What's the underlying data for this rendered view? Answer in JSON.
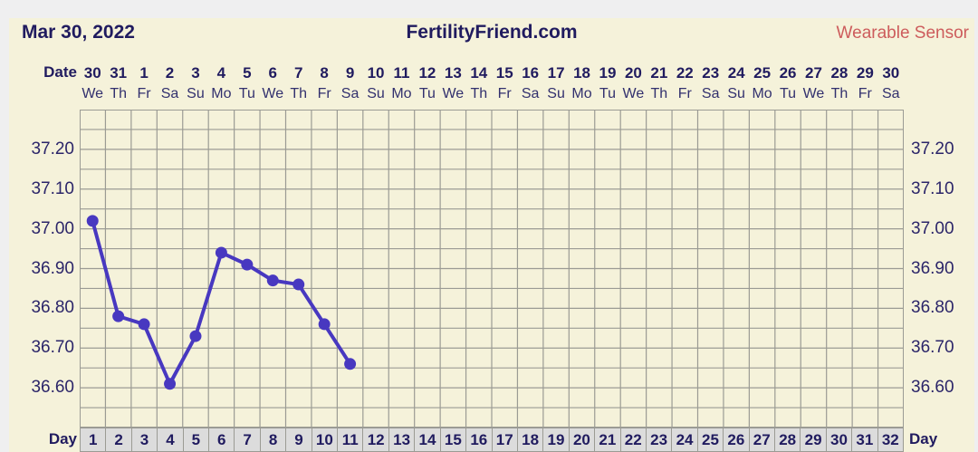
{
  "header": {
    "date_title": "Mar 30, 2022",
    "site_title": "FertilityFriend.com",
    "sensor_label": "Wearable Sensor"
  },
  "axes": {
    "date_row_label": "Date",
    "day_row_label": "Day",
    "dates": [
      "30",
      "31",
      "1",
      "2",
      "3",
      "4",
      "5",
      "6",
      "7",
      "8",
      "9",
      "10",
      "11",
      "12",
      "13",
      "14",
      "15",
      "16",
      "17",
      "18",
      "19",
      "20",
      "21",
      "22",
      "23",
      "24",
      "25",
      "26",
      "27",
      "28",
      "29",
      "30"
    ],
    "weekdays": [
      "We",
      "Th",
      "Fr",
      "Sa",
      "Su",
      "Mo",
      "Tu",
      "We",
      "Th",
      "Fr",
      "Sa",
      "Su",
      "Mo",
      "Tu",
      "We",
      "Th",
      "Fr",
      "Sa",
      "Su",
      "Mo",
      "Tu",
      "We",
      "Th",
      "Fr",
      "Sa",
      "Su",
      "Mo",
      "Tu",
      "We",
      "Th",
      "Fr",
      "Sa"
    ],
    "day_numbers": [
      "1",
      "2",
      "3",
      "4",
      "5",
      "6",
      "7",
      "8",
      "9",
      "10",
      "11",
      "12",
      "13",
      "14",
      "15",
      "16",
      "17",
      "18",
      "19",
      "20",
      "21",
      "22",
      "23",
      "24",
      "25",
      "26",
      "27",
      "28",
      "29",
      "30",
      "31",
      "32"
    ],
    "y_tick_labels": [
      "37.20",
      "37.10",
      "37.00",
      "36.90",
      "36.80",
      "36.70",
      "36.60"
    ]
  },
  "chart_data": {
    "type": "line",
    "title": "FertilityFriend.com",
    "x_label": "Day",
    "x": [
      1,
      2,
      3,
      4,
      5,
      6,
      7,
      8,
      9,
      10,
      11
    ],
    "values": [
      37.02,
      36.78,
      36.76,
      36.61,
      36.73,
      36.94,
      36.91,
      36.87,
      36.86,
      36.76,
      36.66
    ],
    "ylim": [
      36.5,
      37.3
    ],
    "y_grid_step": 0.05,
    "y_tick_step": 0.1,
    "x_columns": 32,
    "grid": true,
    "legend": false
  },
  "colors": {
    "line": "#4838c0",
    "grid": "#9b9b94",
    "panel_bg": "#f5f2da",
    "frame_bg": "#efeff0",
    "text_navy": "#201b5f",
    "weekday_text": "#32306e",
    "sensor_label": "#cd5c5c",
    "day_cell_bg": "#dcdcdc"
  }
}
